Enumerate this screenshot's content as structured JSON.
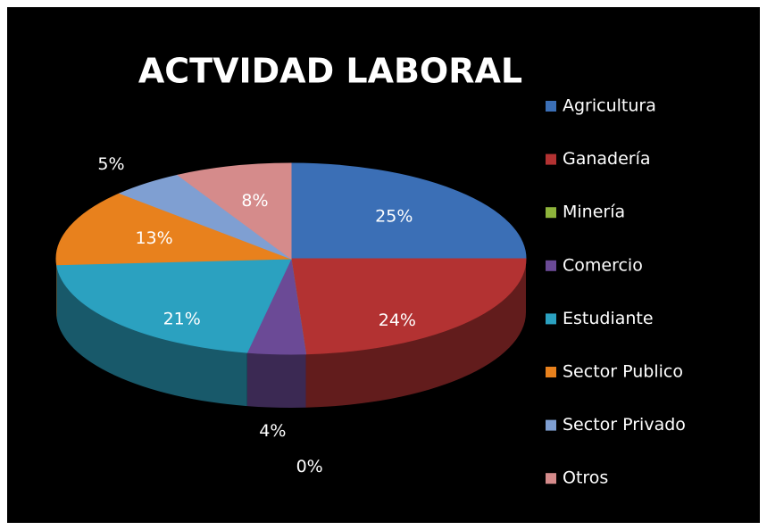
{
  "chart_data": {
    "type": "pie3d",
    "title": "ACTVIDAD LABORAL",
    "categories": [
      "Agricultura",
      "Ganadería",
      "Minería",
      "Comercio",
      "Estudiante",
      "Sector Publico",
      "Sector Privado",
      "Otros"
    ],
    "values": [
      25,
      24,
      0,
      4,
      21,
      13,
      5,
      8
    ],
    "value_labels": [
      "25%",
      "24%",
      "0%",
      "4%",
      "21%",
      "13%",
      "5%",
      "8%"
    ],
    "colors": [
      "#3b6fb6",
      "#b33232",
      "#8eb43b",
      "#6b4a96",
      "#2ba1c0",
      "#e8811d",
      "#7f9fd2",
      "#d58b8b"
    ],
    "legend": "right"
  }
}
